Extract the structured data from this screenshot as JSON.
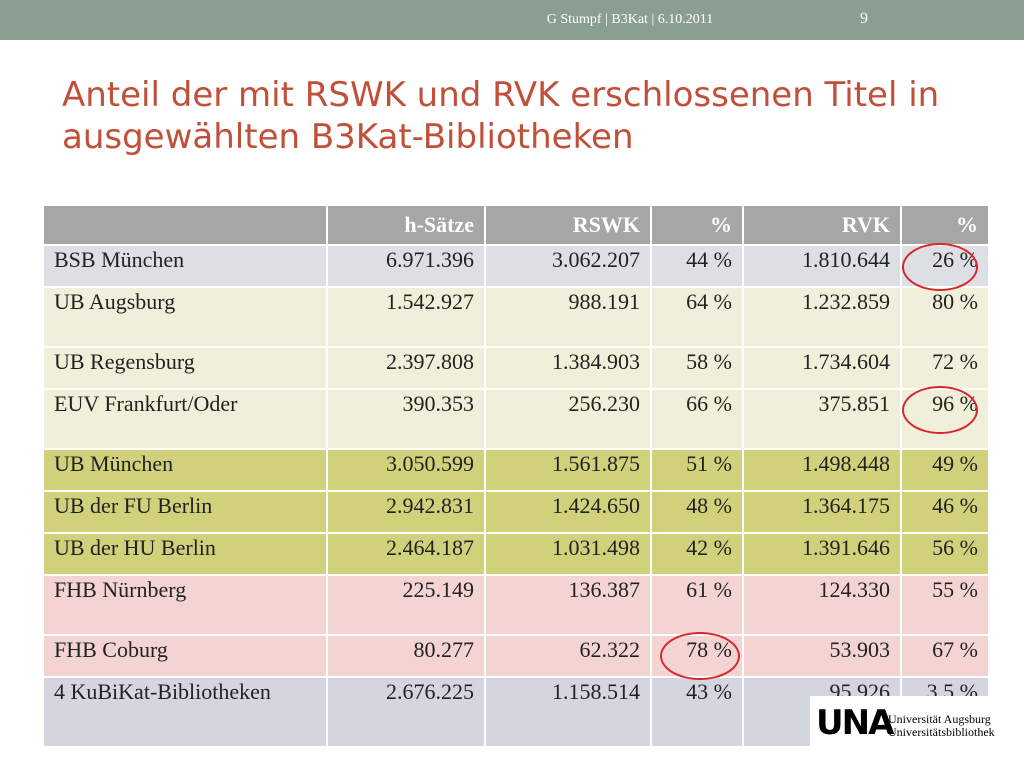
{
  "header": {
    "footer_text": "G Stumpf  |  B3Kat  |  6.10.2011",
    "page_number": "9"
  },
  "title": "Anteil der mit RSWK und RVK erschlossenen Titel in ausgewählten B3Kat-Bibliotheken",
  "table": {
    "headers": [
      "",
      "h-Sätze",
      "RSWK",
      "%",
      "RVK",
      "%"
    ],
    "rows": [
      {
        "group": "grey",
        "cells": [
          "BSB München",
          "6.971.396",
          "3.062.207",
          "44 %",
          "1.810.644",
          "26 %"
        ]
      },
      {
        "group": "cream",
        "cells": [
          "UB Augsburg",
          "1.542.927",
          "988.191",
          "64 %",
          "1.232.859",
          "80 %"
        ]
      },
      {
        "group": "cream",
        "cells": [
          "UB Regensburg",
          "2.397.808",
          "1.384.903",
          "58 %",
          "1.734.604",
          "72 %"
        ]
      },
      {
        "group": "cream",
        "cells": [
          "EUV Frankfurt/Oder",
          "390.353",
          "256.230",
          "66 %",
          "375.851",
          "96 %"
        ]
      },
      {
        "group": "olive",
        "cells": [
          "UB München",
          "3.050.599",
          "1.561.875",
          "51 %",
          "1.498.448",
          "49 %"
        ]
      },
      {
        "group": "olive",
        "cells": [
          "UB der FU Berlin",
          "2.942.831",
          "1.424.650",
          "48 %",
          "1.364.175",
          "46 %"
        ]
      },
      {
        "group": "olive",
        "cells": [
          "UB der HU Berlin",
          "2.464.187",
          "1.031.498",
          "42 %",
          "1.391.646",
          "56 %"
        ]
      },
      {
        "group": "pink",
        "cells": [
          "FHB Nürnberg",
          "225.149",
          "136.387",
          "61 %",
          "124.330",
          "55 %"
        ]
      },
      {
        "group": "pink",
        "cells": [
          "FHB Coburg",
          "80.277",
          "62.322",
          "78 %",
          "53.903",
          "67 %"
        ]
      },
      {
        "group": "slate",
        "cells": [
          "4 KuBiKat-Bibliotheken",
          "2.676.225",
          "1.158.514",
          "43 %",
          "95.926",
          "3,5 %"
        ]
      }
    ]
  },
  "highlights": [
    "BSB München RVK %",
    "EUV Frankfurt/Oder RVK %",
    "FHB Coburg RSWK %"
  ],
  "logo": {
    "mark": "UNA",
    "line1": "Universität Augsburg",
    "line2": "Universitätsbibliothek"
  },
  "colors": {
    "title": "#c0503a",
    "topbar": "#8b9e92",
    "header_row": "#a6a6a6",
    "highlight_circle": "#d7262e"
  }
}
